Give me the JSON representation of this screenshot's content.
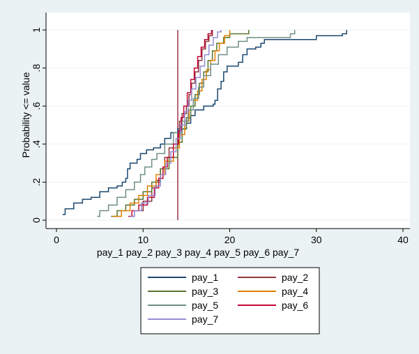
{
  "chart_data": {
    "type": "line",
    "title": "",
    "xlabel": "pay_1 pay_2 pay_3 pay_4 pay_5 pay_6 pay_7",
    "ylabel": "Probability <= value",
    "xlim": [
      0,
      40
    ],
    "ylim": [
      0,
      1
    ],
    "x_ticks": [
      0,
      10,
      20,
      30,
      40
    ],
    "x_tick_labels": [
      "0",
      "10",
      "20",
      "30",
      "40"
    ],
    "y_ticks": [
      0,
      0.2,
      0.4,
      0.6,
      0.8,
      1
    ],
    "y_tick_labels": [
      "0",
      ".2",
      ".4",
      ".6",
      ".8",
      "1"
    ],
    "grid": "horizontal",
    "legend_position": "bottom",
    "legend_columns": 2,
    "reference_line": {
      "x": 14,
      "color": "#8b1a2a"
    },
    "series": [
      {
        "name": "pay_1",
        "color": "#1a476f",
        "points": [
          [
            0.7,
            0.03
          ],
          [
            1.0,
            0.06
          ],
          [
            2.0,
            0.09
          ],
          [
            3.0,
            0.11
          ],
          [
            4.0,
            0.12
          ],
          [
            5.0,
            0.15
          ],
          [
            6.0,
            0.17
          ],
          [
            7.0,
            0.18
          ],
          [
            7.6,
            0.2
          ],
          [
            8.0,
            0.22
          ],
          [
            8.2,
            0.27
          ],
          [
            8.5,
            0.3
          ],
          [
            9.3,
            0.32
          ],
          [
            9.7,
            0.35
          ],
          [
            10.4,
            0.37
          ],
          [
            11.2,
            0.38
          ],
          [
            12.0,
            0.4
          ],
          [
            12.5,
            0.43
          ],
          [
            13.2,
            0.46
          ],
          [
            14.0,
            0.48
          ],
          [
            15.0,
            0.51
          ],
          [
            15.5,
            0.55
          ],
          [
            16.0,
            0.58
          ],
          [
            17.0,
            0.6
          ],
          [
            18.1,
            0.61
          ],
          [
            18.3,
            0.63
          ],
          [
            18.6,
            0.69
          ],
          [
            19.0,
            0.73
          ],
          [
            19.3,
            0.78
          ],
          [
            19.7,
            0.81
          ],
          [
            21.0,
            0.83
          ],
          [
            21.5,
            0.87
          ],
          [
            22.0,
            0.9
          ],
          [
            23.0,
            0.91
          ],
          [
            23.6,
            0.93
          ],
          [
            24.0,
            0.95
          ],
          [
            30.0,
            0.97
          ],
          [
            33.0,
            0.98
          ],
          [
            33.5,
            1.0
          ]
        ]
      },
      {
        "name": "pay_2",
        "color": "#90353b",
        "points": [
          [
            8.6,
            0.02
          ],
          [
            9.0,
            0.05
          ],
          [
            10.0,
            0.1
          ],
          [
            11.0,
            0.17
          ],
          [
            11.5,
            0.21
          ],
          [
            12.0,
            0.27
          ],
          [
            12.5,
            0.33
          ],
          [
            13.0,
            0.38
          ],
          [
            14.0,
            0.45
          ],
          [
            14.2,
            0.52
          ],
          [
            14.5,
            0.56
          ],
          [
            15.0,
            0.6
          ],
          [
            15.3,
            0.66
          ],
          [
            15.6,
            0.72
          ],
          [
            16.0,
            0.78
          ],
          [
            16.4,
            0.84
          ],
          [
            16.8,
            0.9
          ],
          [
            17.2,
            0.94
          ],
          [
            17.6,
            0.97
          ],
          [
            18.0,
            1.0
          ]
        ]
      },
      {
        "name": "pay_3",
        "color": "#55752f",
        "points": [
          [
            6.3,
            0.02
          ],
          [
            7.0,
            0.05
          ],
          [
            8.0,
            0.08
          ],
          [
            9.0,
            0.11
          ],
          [
            10.0,
            0.15
          ],
          [
            11.0,
            0.2
          ],
          [
            12.0,
            0.27
          ],
          [
            13.0,
            0.33
          ],
          [
            14.0,
            0.41
          ],
          [
            14.5,
            0.48
          ],
          [
            15.0,
            0.54
          ],
          [
            15.5,
            0.6
          ],
          [
            16.0,
            0.66
          ],
          [
            16.5,
            0.72
          ],
          [
            17.0,
            0.78
          ],
          [
            17.5,
            0.84
          ],
          [
            18.0,
            0.89
          ],
          [
            18.5,
            0.93
          ],
          [
            19.3,
            0.96
          ],
          [
            20.0,
            0.98
          ],
          [
            21.0,
            0.98
          ],
          [
            22.2,
            1.0
          ]
        ]
      },
      {
        "name": "pay_4",
        "color": "#e37e00",
        "points": [
          [
            6.5,
            0.02
          ],
          [
            7.5,
            0.05
          ],
          [
            8.5,
            0.09
          ],
          [
            9.5,
            0.13
          ],
          [
            10.5,
            0.18
          ],
          [
            11.5,
            0.24
          ],
          [
            12.5,
            0.31
          ],
          [
            13.5,
            0.38
          ],
          [
            14.2,
            0.45
          ],
          [
            14.8,
            0.52
          ],
          [
            15.3,
            0.58
          ],
          [
            15.8,
            0.63
          ],
          [
            16.3,
            0.68
          ],
          [
            16.8,
            0.74
          ],
          [
            17.3,
            0.79
          ],
          [
            17.8,
            0.84
          ],
          [
            18.3,
            0.89
          ],
          [
            18.8,
            0.93
          ],
          [
            19.4,
            0.97
          ],
          [
            20.0,
            1.0
          ]
        ]
      },
      {
        "name": "pay_5",
        "color": "#6e8e84",
        "points": [
          [
            4.7,
            0.02
          ],
          [
            5.0,
            0.05
          ],
          [
            6.0,
            0.08
          ],
          [
            7.0,
            0.12
          ],
          [
            8.0,
            0.16
          ],
          [
            9.0,
            0.2
          ],
          [
            9.7,
            0.24
          ],
          [
            10.2,
            0.28
          ],
          [
            11.0,
            0.32
          ],
          [
            11.6,
            0.35
          ],
          [
            12.5,
            0.4
          ],
          [
            13.5,
            0.46
          ],
          [
            14.5,
            0.52
          ],
          [
            15.2,
            0.58
          ],
          [
            15.8,
            0.64
          ],
          [
            16.4,
            0.7
          ],
          [
            17.0,
            0.76
          ],
          [
            17.8,
            0.82
          ],
          [
            18.7,
            0.87
          ],
          [
            19.7,
            0.91
          ],
          [
            21.0,
            0.94
          ],
          [
            22.0,
            0.96
          ],
          [
            27.0,
            0.98
          ],
          [
            27.5,
            1.0
          ]
        ]
      },
      {
        "name": "pay_6",
        "color": "#c10534",
        "points": [
          [
            8.3,
            0.02
          ],
          [
            8.7,
            0.05
          ],
          [
            9.5,
            0.08
          ],
          [
            10.5,
            0.12
          ],
          [
            11.3,
            0.17
          ],
          [
            11.8,
            0.22
          ],
          [
            12.3,
            0.28
          ],
          [
            12.8,
            0.33
          ],
          [
            13.5,
            0.4
          ],
          [
            14.1,
            0.47
          ],
          [
            14.4,
            0.54
          ],
          [
            14.7,
            0.6
          ],
          [
            15.1,
            0.67
          ],
          [
            15.5,
            0.74
          ],
          [
            15.9,
            0.8
          ],
          [
            16.3,
            0.86
          ],
          [
            16.7,
            0.91
          ],
          [
            17.1,
            0.95
          ],
          [
            17.5,
            0.98
          ],
          [
            17.9,
            1.0
          ]
        ]
      },
      {
        "name": "pay_7",
        "color": "#938dd2",
        "points": [
          [
            8.5,
            0.02
          ],
          [
            9.0,
            0.05
          ],
          [
            9.8,
            0.09
          ],
          [
            10.6,
            0.13
          ],
          [
            11.4,
            0.18
          ],
          [
            12.0,
            0.24
          ],
          [
            12.6,
            0.3
          ],
          [
            13.2,
            0.36
          ],
          [
            13.8,
            0.43
          ],
          [
            14.3,
            0.5
          ],
          [
            14.8,
            0.57
          ],
          [
            15.2,
            0.63
          ],
          [
            15.6,
            0.69
          ],
          [
            16.1,
            0.75
          ],
          [
            16.6,
            0.81
          ],
          [
            17.1,
            0.87
          ],
          [
            17.6,
            0.92
          ],
          [
            18.1,
            0.96
          ],
          [
            18.6,
            0.99
          ],
          [
            19.0,
            1.0
          ]
        ]
      }
    ]
  }
}
